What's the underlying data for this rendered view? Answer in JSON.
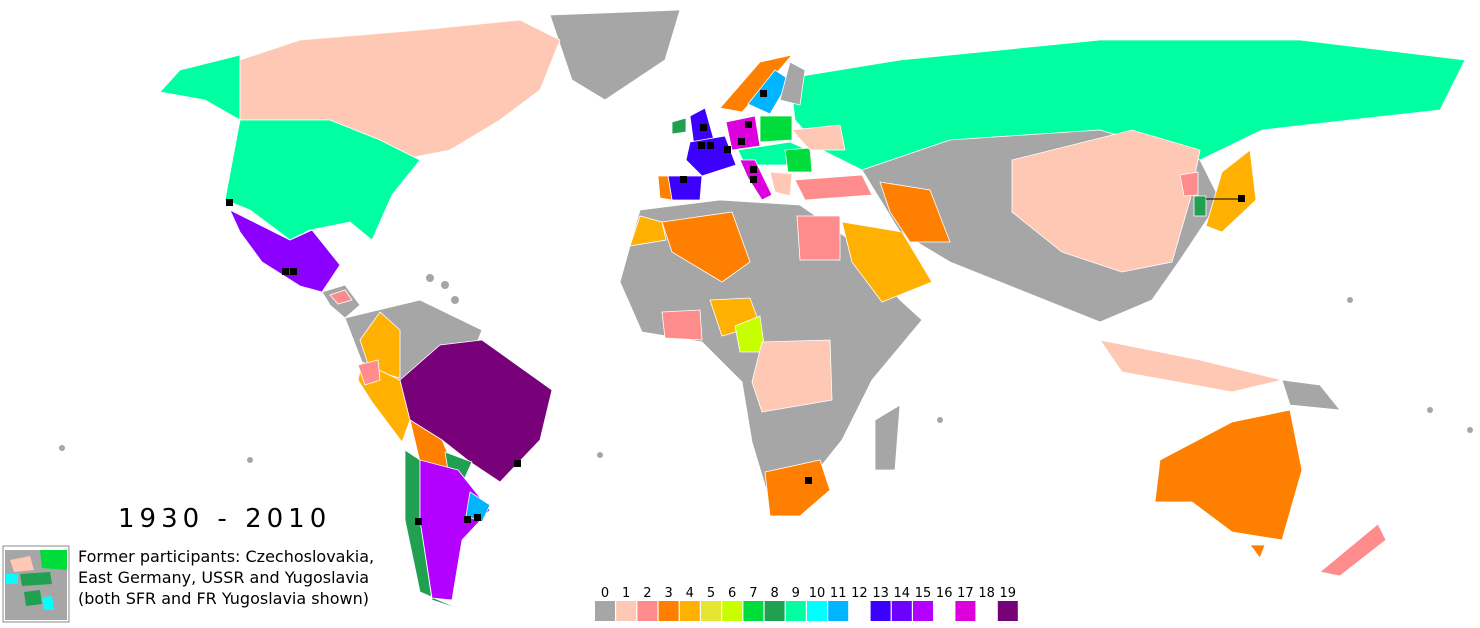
{
  "map": {
    "title": "1930 - 2010",
    "note_lines": [
      "Former participants: Czechoslovakia,",
      "East Germany, USSR and Yugoslavia",
      "(both SFR and FR Yugoslavia shown)"
    ],
    "legend": [
      {
        "label": "0",
        "color": "#a6a6a6"
      },
      {
        "label": "1",
        "color": "#ffc8b4"
      },
      {
        "label": "2",
        "color": "#ff8c8c"
      },
      {
        "label": "3",
        "color": "#ff8000"
      },
      {
        "label": "4",
        "color": "#ffb000"
      },
      {
        "label": "5",
        "color": "#e6e632"
      },
      {
        "label": "6",
        "color": "#c8ff00"
      },
      {
        "label": "7",
        "color": "#00dc3c"
      },
      {
        "label": "8",
        "color": "#20a050"
      },
      {
        "label": "9",
        "color": "#00ffa0"
      },
      {
        "label": "10",
        "color": "#00ffff"
      },
      {
        "label": "11",
        "color": "#00b4ff"
      },
      {
        "label": "12",
        "color": "#ffffff"
      },
      {
        "label": "13",
        "color": "#3c00ff"
      },
      {
        "label": "14",
        "color": "#6e00ff"
      },
      {
        "label": "15",
        "color": "#b400ff"
      },
      {
        "label": "16",
        "color": "#ffffff"
      },
      {
        "label": "17",
        "color": "#dc00dc"
      },
      {
        "label": "18",
        "color": "#ffffff"
      },
      {
        "label": "19",
        "color": "#780078"
      }
    ]
  }
}
